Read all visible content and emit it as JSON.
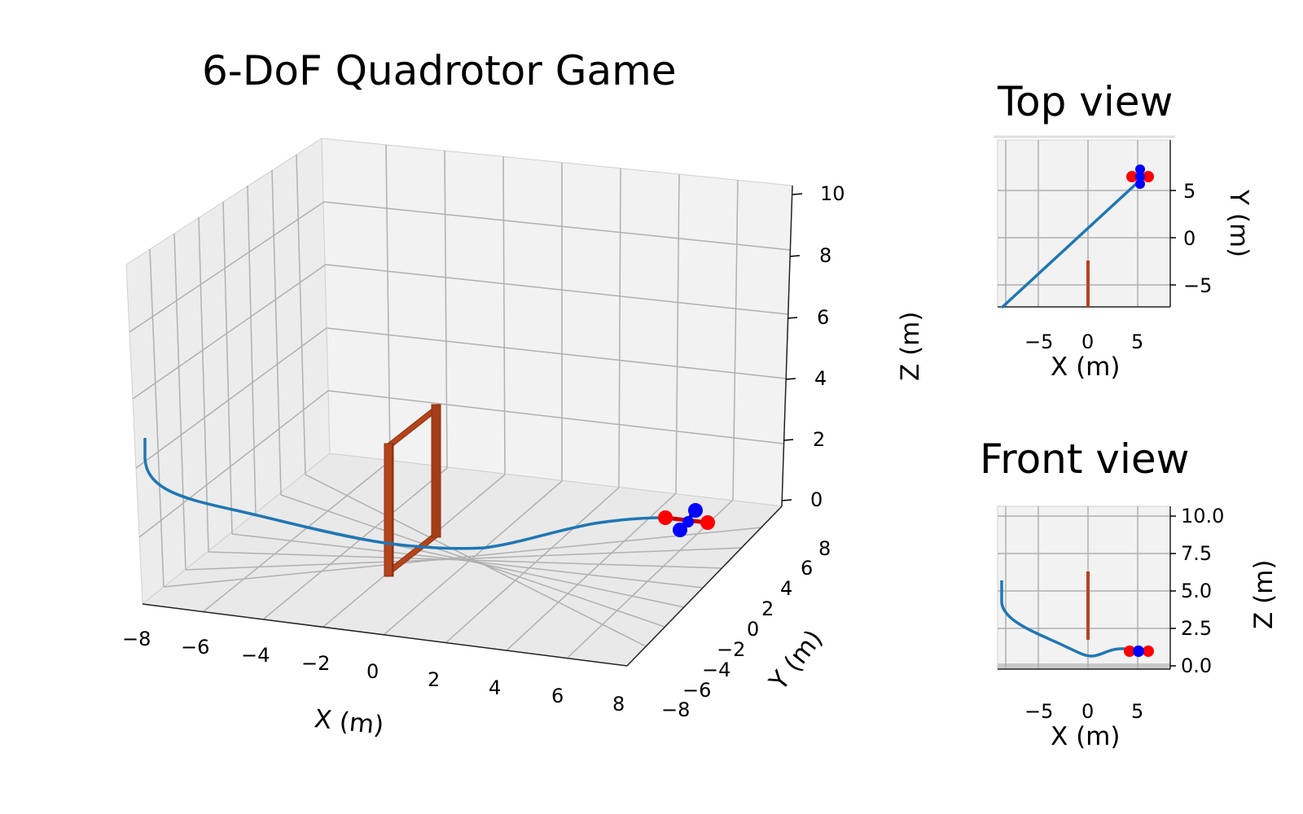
{
  "game": {
    "title": "6-DoF Quadrotor Game",
    "top_view_title": "Top view",
    "front_view_title": "Front view"
  },
  "colors": {
    "trajectory": "#1f77b4",
    "gate": "#b5441c",
    "gate_dark": "#8c3210",
    "rotor_red": "#ff0000",
    "rotor_blue": "#0000ff",
    "grid": "#b0b0b0",
    "pane": "#f2f2f2"
  },
  "chart_data": [
    {
      "type": "line",
      "view": "3d",
      "xlabel": "X (m)",
      "ylabel": "Y (m)",
      "zlabel": "Z (m)",
      "x_ticks": [
        "−8",
        "−6",
        "−4",
        "−2",
        "0",
        "2",
        "4",
        "6",
        "8"
      ],
      "y_ticks": [
        "−8",
        "−6",
        "−4",
        "−2",
        "0",
        "2",
        "4",
        "6",
        "8"
      ],
      "z_ticks": [
        "0",
        "2",
        "4",
        "6",
        "8",
        "10"
      ],
      "xlim": [
        -8,
        8
      ],
      "ylim": [
        -8,
        8
      ],
      "zlim": [
        0,
        10
      ],
      "grid": true
    },
    {
      "type": "line",
      "view": "top",
      "xlabel": "X (m)",
      "ylabel": "Y (m)",
      "x_ticks": [
        "−5",
        "0",
        "5"
      ],
      "y_ticks": [
        "5",
        "0",
        "−5"
      ],
      "grid": true
    },
    {
      "type": "line",
      "view": "front",
      "xlabel": "X (m)",
      "ylabel": "Z (m)",
      "x_ticks": [
        "−5",
        "0",
        "5"
      ],
      "y_ticks": [
        "10.0",
        "7.5",
        "5.0",
        "2.5",
        "0.0"
      ],
      "grid": true
    }
  ]
}
